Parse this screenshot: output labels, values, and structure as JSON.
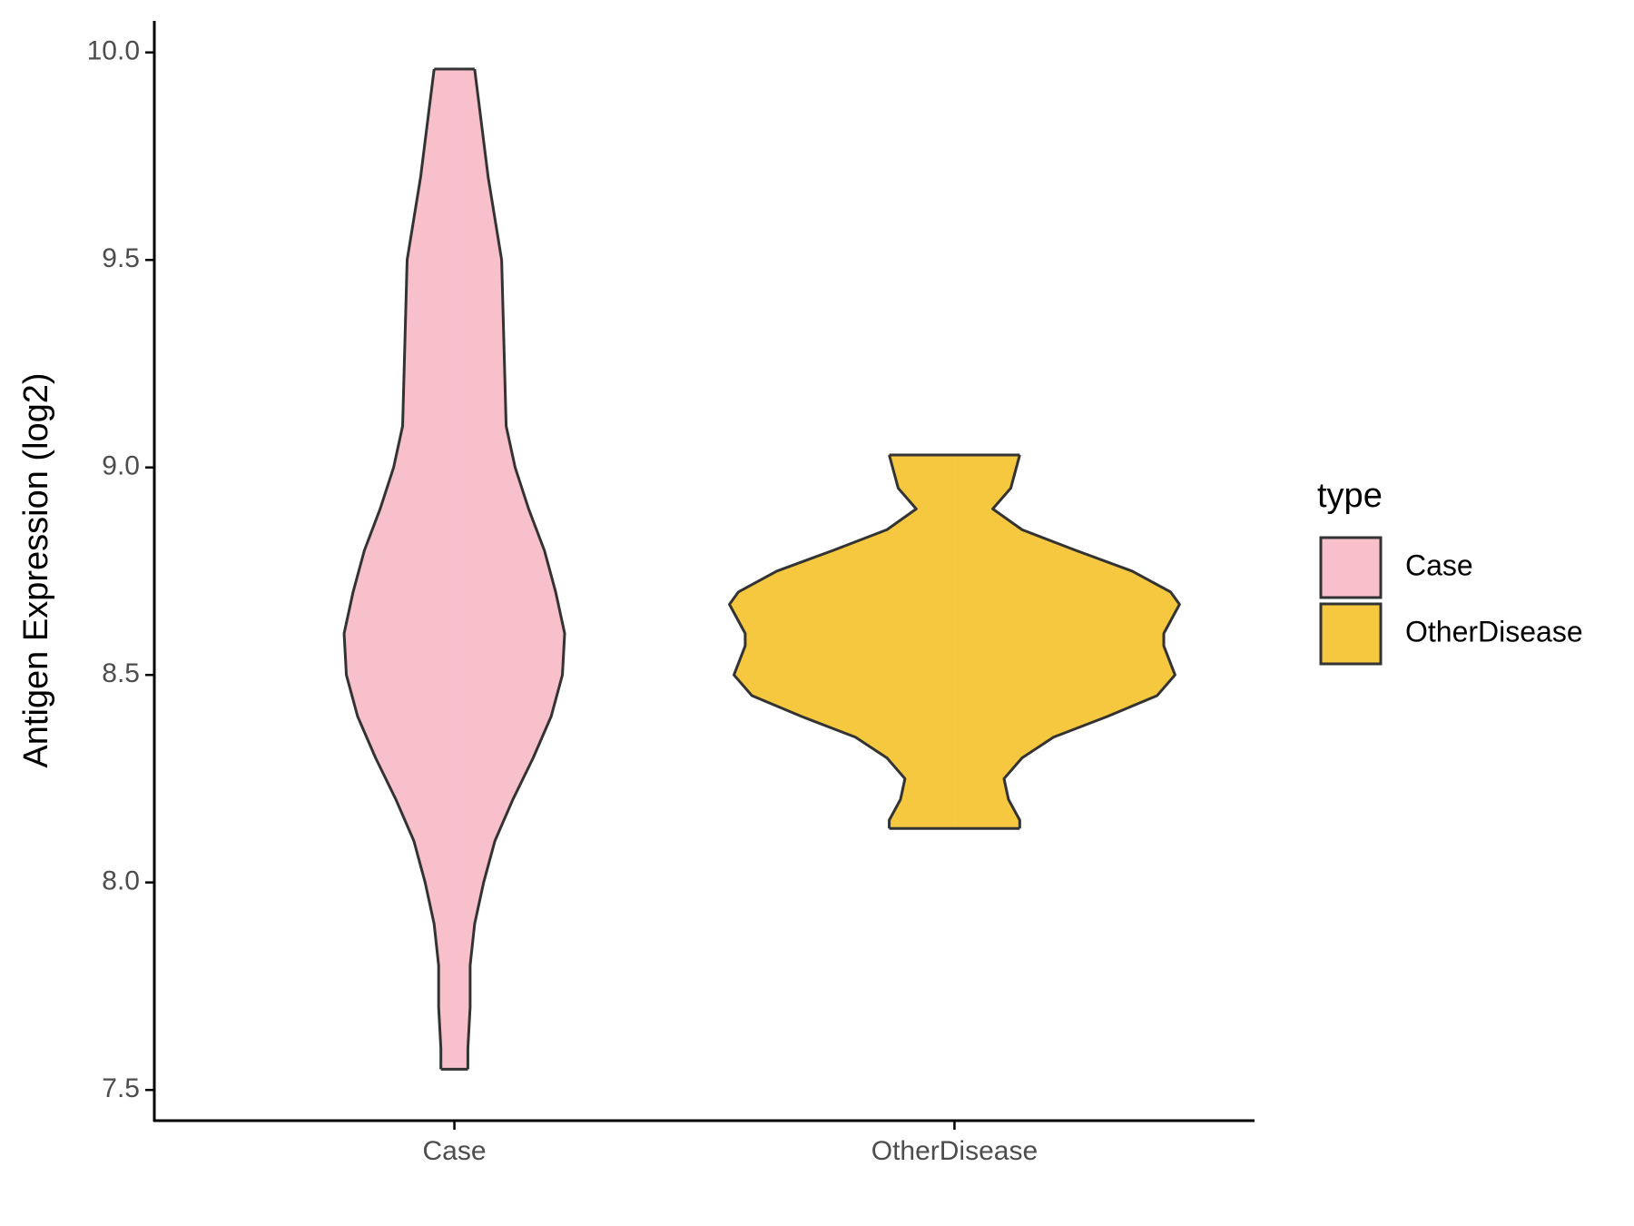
{
  "chart_data": {
    "type": "violin",
    "y_label": "Antigen Expression (log2)",
    "categories": [
      "Case",
      "OtherDisease"
    ],
    "legend_title": "type",
    "legend": "right",
    "series": [
      {
        "name": "Case",
        "color": "#f7c0cb",
        "y": [
          9.96,
          9.7,
          9.5,
          9.3,
          9.1,
          9.0,
          8.9,
          8.8,
          8.7,
          8.6,
          8.5,
          8.4,
          8.3,
          8.2,
          8.1,
          8.0,
          7.9,
          7.8,
          7.7,
          7.6,
          7.55
        ],
        "density": [
          0.09,
          0.15,
          0.21,
          0.22,
          0.23,
          0.27,
          0.33,
          0.4,
          0.45,
          0.49,
          0.48,
          0.43,
          0.35,
          0.26,
          0.18,
          0.13,
          0.09,
          0.07,
          0.07,
          0.06,
          0.06
        ]
      },
      {
        "name": "OtherDisease",
        "color": "#f5c83f",
        "y": [
          9.03,
          8.95,
          8.9,
          8.85,
          8.8,
          8.75,
          8.7,
          8.67,
          8.6,
          8.57,
          8.5,
          8.45,
          8.4,
          8.35,
          8.3,
          8.25,
          8.2,
          8.15,
          8.13
        ],
        "density": [
          0.29,
          0.25,
          0.17,
          0.3,
          0.54,
          0.79,
          0.96,
          1.0,
          0.93,
          0.93,
          0.98,
          0.9,
          0.68,
          0.44,
          0.3,
          0.22,
          0.24,
          0.29,
          0.29
        ]
      }
    ],
    "ylim": [
      7.426,
      10.076
    ],
    "yticks": [
      7.5,
      {
        "value": 8,
        "label": "8.0"
      },
      8.5,
      {
        "value": 9,
        "label": "9.0"
      },
      9.5,
      {
        "value": 10,
        "label": "10.0"
      }
    ],
    "grid": false
  }
}
